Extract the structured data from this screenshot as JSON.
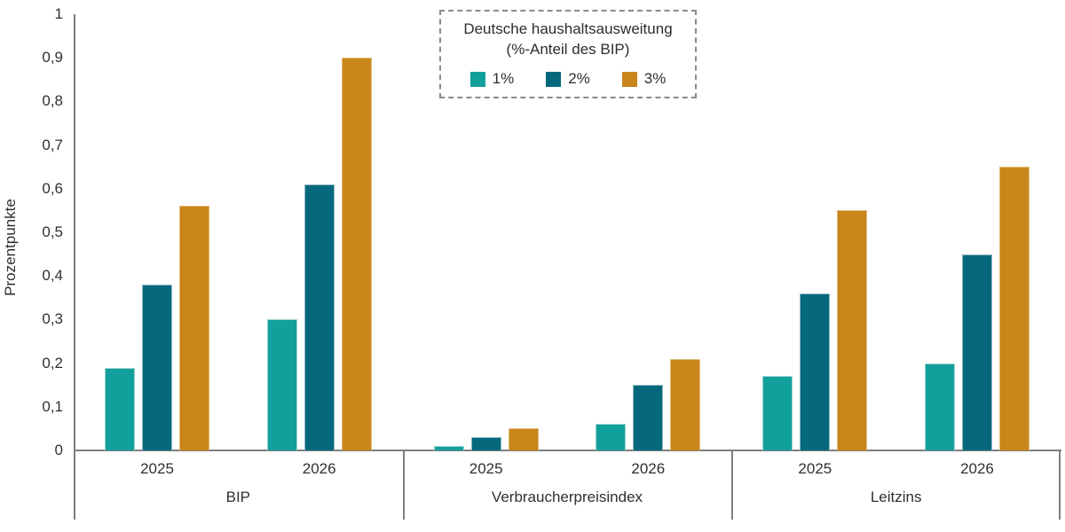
{
  "chart_data": {
    "type": "bar",
    "title": "Deutsche haushaltsausweitung (%-Anteil des BIP)",
    "title_lines": [
      "Deutsche haushaltsausweitung",
      "(%-Anteil des BIP)"
    ],
    "ylabel": "Prozentpunkte",
    "ylim": [
      0,
      1
    ],
    "grid": false,
    "legend_position": "top-center",
    "axis_color": "#7e7e7e",
    "text_color": "#303030",
    "yticks": [
      {
        "value": 0,
        "label": "0"
      },
      {
        "value": 0.1,
        "label": "0,1"
      },
      {
        "value": 0.2,
        "label": "0,2"
      },
      {
        "value": 0.3,
        "label": "0,3"
      },
      {
        "value": 0.4,
        "label": "0,4"
      },
      {
        "value": 0.5,
        "label": "0,5"
      },
      {
        "value": 0.6,
        "label": "0,6"
      },
      {
        "value": 0.7,
        "label": "0,7"
      },
      {
        "value": 0.8,
        "label": "0,8"
      },
      {
        "value": 0.9,
        "label": "0,9"
      },
      {
        "value": 1,
        "label": "1"
      }
    ],
    "series": [
      {
        "name": "1%",
        "color": "#12A09D",
        "stroke": "#9ad3d1"
      },
      {
        "name": "2%",
        "color": "#06687D",
        "stroke": "#8fb7c2"
      },
      {
        "name": "3%",
        "color": "#C8861B",
        "stroke": "#e2bc77"
      }
    ],
    "groups": [
      {
        "label": "BIP",
        "clusters": [
          {
            "label": "2025",
            "values": [
              0.19,
              0.38,
              0.56
            ]
          },
          {
            "label": "2026",
            "values": [
              0.3,
              0.61,
              0.9
            ]
          }
        ]
      },
      {
        "label": "Verbraucherpreisindex",
        "clusters": [
          {
            "label": "2025",
            "values": [
              0.01,
              0.03,
              0.05
            ]
          },
          {
            "label": "2026",
            "values": [
              0.06,
              0.15,
              0.21
            ]
          }
        ]
      },
      {
        "label": "Leitzins",
        "clusters": [
          {
            "label": "2025",
            "values": [
              0.17,
              0.36,
              0.55
            ]
          },
          {
            "label": "2026",
            "values": [
              0.2,
              0.45,
              0.65
            ]
          }
        ]
      }
    ]
  }
}
